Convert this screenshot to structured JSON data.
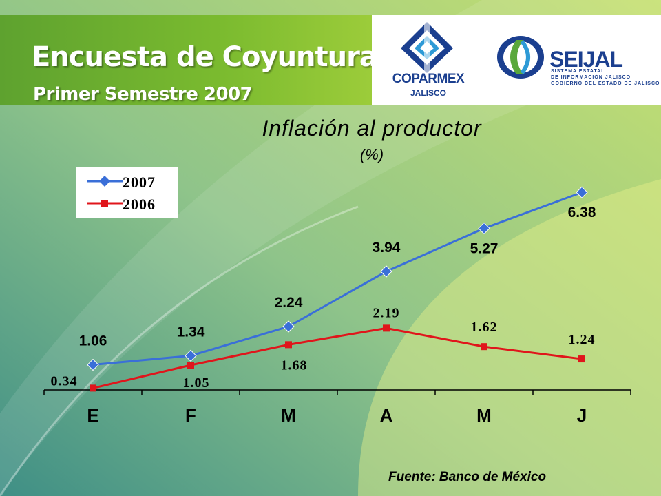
{
  "header": {
    "title": "Encuesta de Coyuntura",
    "subtitle": "Primer Semestre 2007"
  },
  "logos": {
    "coparmex": {
      "name": "COPARMEX",
      "sub": "JALISCO",
      "icon": "coparmex-logo-icon"
    },
    "seijal": {
      "name": "SEIJAL",
      "line1": "SISTEMA ESTATAL",
      "line2": "DE INFORMACIÓN JALISCO",
      "line3": "GOBIERNO DEL ESTADO DE JALISCO",
      "icon": "seijal-logo-icon"
    }
  },
  "colors": {
    "series_2007": "#3a6fd8",
    "series_2006": "#e0151b",
    "banner": "#6fb22f",
    "brand_blue": "#1b3f8f"
  },
  "chart_data": {
    "type": "line",
    "title": "Inflación al productor",
    "unit": "(%)",
    "categories": [
      "E",
      "F",
      "M",
      "A",
      "M",
      "J"
    ],
    "series": [
      {
        "name": "2007",
        "values": [
          1.06,
          1.34,
          2.24,
          3.94,
          5.27,
          6.38
        ],
        "labels": [
          "1.06",
          "1.34",
          "2.24",
          "3.94",
          "5.27",
          "6.38"
        ]
      },
      {
        "name": "2006",
        "values": [
          0.34,
          1.05,
          1.68,
          2.19,
          1.62,
          1.24
        ],
        "labels": [
          "0.34",
          "1.05",
          "1.68",
          "2.19",
          "1.62",
          "1.24"
        ]
      }
    ],
    "legend_position": "top-left",
    "grid": false
  },
  "footer": {
    "source": "Fuente: Banco de México"
  }
}
